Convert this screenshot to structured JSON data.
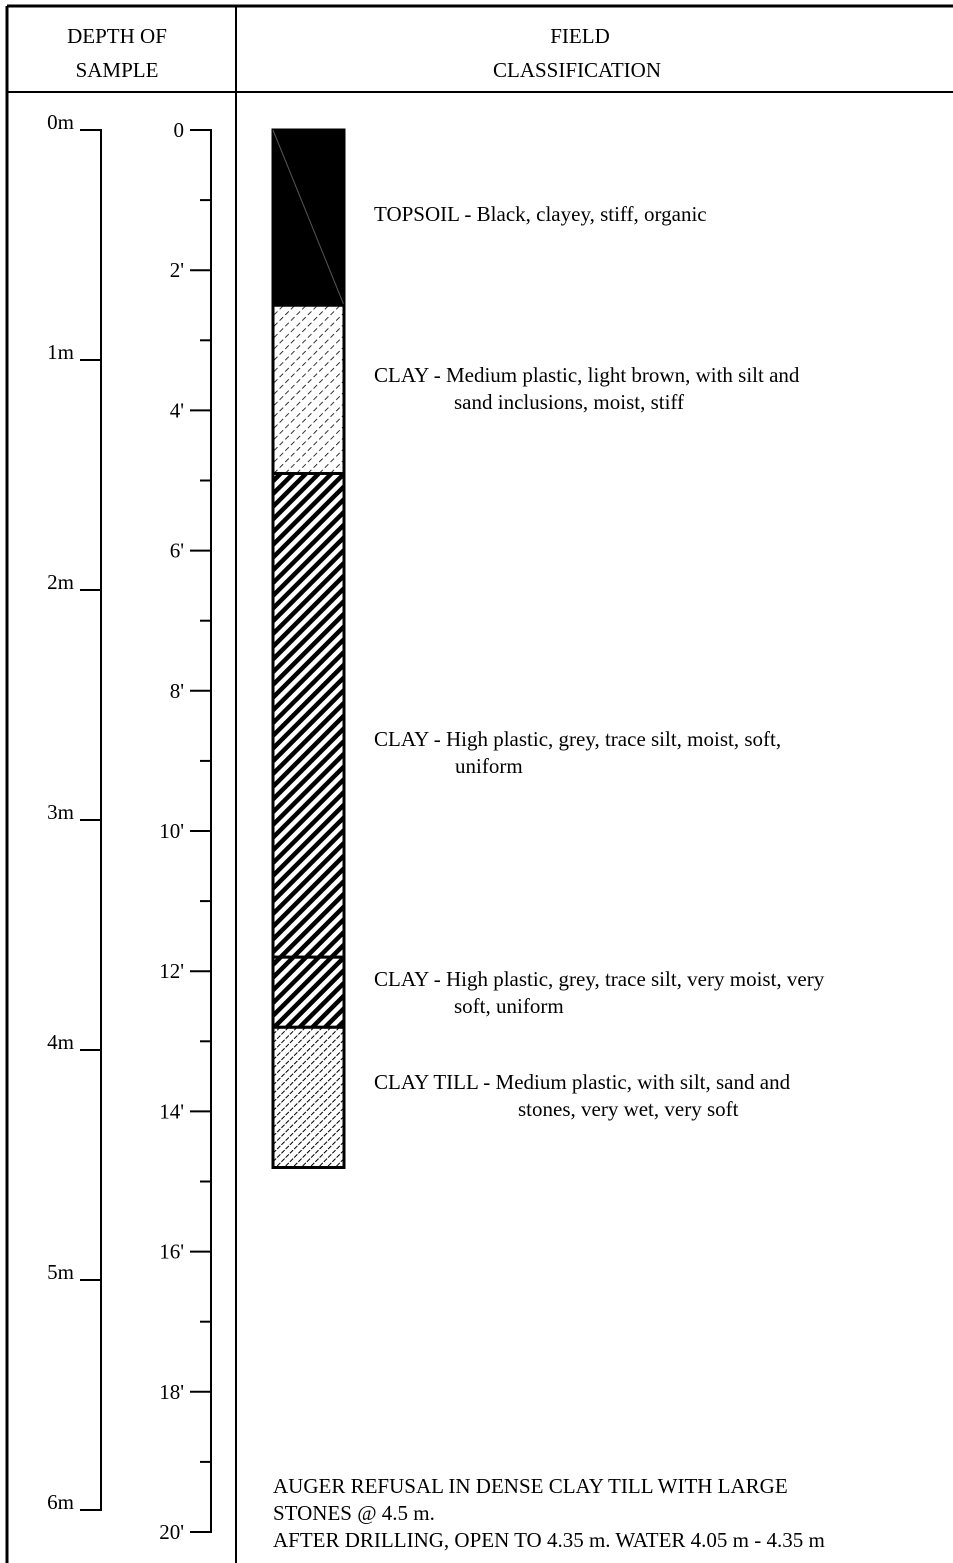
{
  "header": {
    "depth_line1": "DEPTH OF",
    "depth_line2": "SAMPLE",
    "field_line1": "FIELD",
    "field_line2": "CLASSIFICATION"
  },
  "metric_scale": {
    "labels": [
      "0m",
      "1m",
      "2m",
      "3m",
      "4m",
      "5m",
      "6m"
    ]
  },
  "imperial_scale": {
    "labels": [
      "0",
      "2'",
      "4'",
      "6'",
      "8'",
      "10'",
      "12'",
      "14'",
      "16'",
      "18'",
      "20'"
    ]
  },
  "layers": [
    {
      "top_ft": 0,
      "bottom_ft": 2.5,
      "pattern": "solid-black",
      "lines": [
        "TOPSOIL - Black, clayey, stiff, organic"
      ]
    },
    {
      "top_ft": 2.5,
      "bottom_ft": 4.9,
      "pattern": "light-dashed-hatch",
      "lines": [
        "CLAY - Medium plastic, light brown, with silt and",
        "sand inclusions, moist, stiff"
      ]
    },
    {
      "top_ft": 4.9,
      "bottom_ft": 11.8,
      "pattern": "diagonal-hatch",
      "lines": [
        "CLAY - High plastic, grey, trace silt, moist, soft,",
        "uniform"
      ]
    },
    {
      "top_ft": 11.8,
      "bottom_ft": 12.8,
      "pattern": "diagonal-hatch",
      "lines": [
        "CLAY - High plastic, grey, trace silt, very moist, very",
        "soft, uniform"
      ]
    },
    {
      "top_ft": 12.8,
      "bottom_ft": 14.8,
      "pattern": "dense-dashed-hatch",
      "lines": [
        "CLAY TILL - Medium plastic, with silt, sand and",
        "stones, very wet, very soft"
      ]
    }
  ],
  "notes": [
    "AUGER REFUSAL IN DENSE CLAY TILL WITH LARGE",
    "STONES @ 4.5 m.",
    "AFTER DRILLING, OPEN TO 4.35 m. WATER 4.05 m - 4.35 m"
  ]
}
